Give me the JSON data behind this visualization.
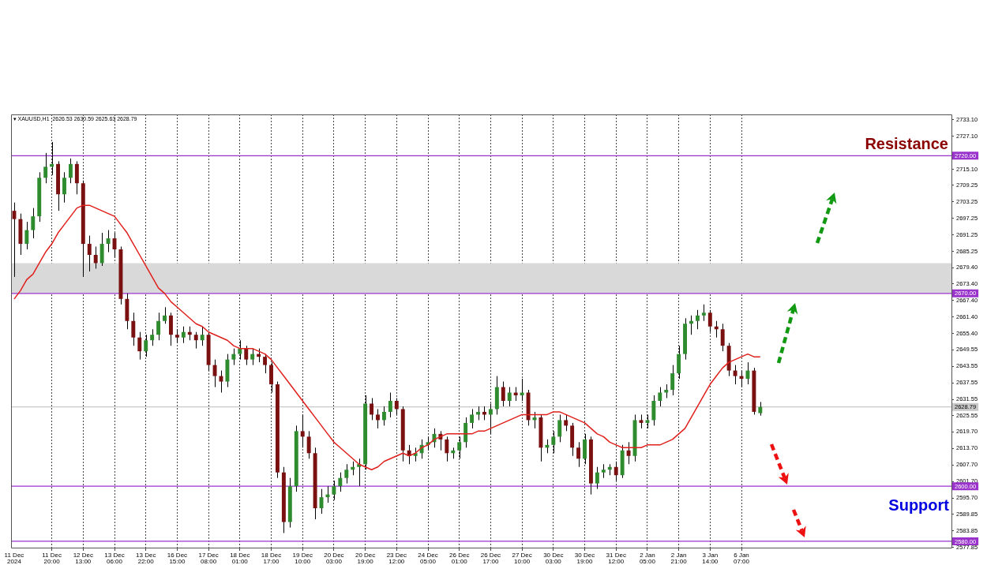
{
  "chart_data": {
    "type": "candlestick",
    "categories": [
      "11 Dec 2024",
      null,
      null,
      null,
      null,
      null,
      "11 Dec 20:00",
      null,
      null,
      null,
      null,
      "12 Dec 13:00",
      null,
      null,
      null,
      null,
      "13 Dec 06:00",
      null,
      null,
      null,
      null,
      "13 Dec 22:00",
      null,
      null,
      null,
      null,
      "16 Dec 15:00",
      null,
      null,
      null,
      null,
      "17 Dec 08:00",
      null,
      null,
      null,
      null,
      "18 Dec 01:00",
      null,
      null,
      null,
      null,
      "18 Dec 17:00",
      null,
      null,
      null,
      null,
      "19 Dec 10:00",
      null,
      null,
      null,
      null,
      "20 Dec 03:00",
      null,
      null,
      null,
      null,
      "20 Dec 19:00",
      null,
      null,
      null,
      null,
      "23 Dec 12:00",
      null,
      null,
      null,
      null,
      "24 Dec 05:00",
      null,
      null,
      null,
      null,
      "26 Dec 01:00",
      null,
      null,
      null,
      null,
      "26 Dec 17:00",
      null,
      null,
      null,
      null,
      "27 Dec 10:00",
      null,
      null,
      null,
      null,
      "30 Dec 03:00",
      null,
      null,
      null,
      null,
      "30 Dec 19:00",
      null,
      null,
      null,
      null,
      "31 Dec 12:00",
      null,
      null,
      null,
      null,
      "2 Jan 05:00",
      null,
      null,
      null,
      null,
      "2 Jan 21:00",
      null,
      null,
      null,
      null,
      "3 Jan 14:00",
      null,
      null,
      null,
      null,
      "6 Jan 07:00",
      null,
      null,
      null,
      null,
      null,
      null,
      null,
      null,
      null,
      null,
      null,
      null,
      null,
      null,
      null,
      null,
      null,
      null,
      null,
      null,
      null,
      null,
      null,
      null,
      null,
      null,
      null,
      null,
      null,
      null,
      null,
      null,
      null
    ],
    "colors": [
      "#7a1010",
      "#7a1010",
      "#2e8b2e",
      "#2e8b2e",
      "#2e8b2e",
      "#2e8b2e",
      "#2e8b2e",
      "#7a1010",
      "#2e8b2e",
      "#2e8b2e",
      "#7a1010",
      "#7a1010",
      "#7a1010",
      "#7a1010",
      "#2e8b2e",
      "#2e8b2e",
      "#7a1010",
      "#7a1010",
      "#7a1010",
      "#7a1010",
      "#7a1010",
      "#2e8b2e",
      "#2e8b2e",
      "#2e8b2e",
      "#2e8b2e",
      "#7a1010",
      "#7a1010",
      "#2e8b2e",
      "#7a1010",
      "#7a1010",
      "#2e8b2e",
      "#7a1010",
      "#7a1010",
      "#7a1010",
      "#2e8b2e",
      "#2e8b2e",
      "#2e8b2e",
      "#7a1010",
      "#2e8b2e",
      "#7a1010",
      "#7a1010",
      "#7a1010",
      "#7a1010",
      "#7a1010",
      "#2e8b2e",
      "#2e8b2e",
      "#7a1010",
      "#7a1010",
      "#7a1010",
      "#2e8b2e",
      "#2e8b2e",
      "#2e8b2e",
      "#2e8b2e",
      "#2e8b2e",
      "#2e8b2e",
      "#2e8b2e",
      "#2e8b2e",
      "#7a1010",
      "#7a1010",
      "#2e8b2e",
      "#2e8b2e",
      "#7a1010",
      "#7a1010",
      "#7a1010",
      "#2e8b2e",
      "#2e8b2e",
      "#2e8b2e",
      "#2e8b2e",
      "#7a1010",
      "#7a1010",
      "#2e8b2e",
      "#2e8b2e",
      "#2e8b2e",
      "#2e8b2e",
      "#2e8b2e",
      "#7a1010",
      "#2e8b2e",
      "#2e8b2e",
      "#7a1010",
      "#2e8b2e",
      "#7a1010",
      "#2e8b2e",
      "#7a1010",
      "#2e8b2e",
      "#7a1010",
      "#2e8b2e",
      "#2e8b2e",
      "#2e8b2e",
      "#7a1010",
      "#7a1010",
      "#7a1010",
      "#2e8b2e",
      "#7a1010",
      "#2e8b2e",
      "#2e8b2e",
      "#2e8b2e",
      "#7a1010",
      "#2e8b2e",
      "#7a1010",
      "#2e8b2e",
      "#7a1010",
      "#2e8b2e",
      "#2e8b2e",
      "#2e8b2e",
      "#2e8b2e",
      "#2e8b2e",
      "#2e8b2e",
      "#2e8b2e",
      "#2e8b2e",
      "#2e8b2e",
      "#2e8b2e",
      "#7a1010",
      "#7a1010",
      "#7a1010",
      "#7a1010",
      "#7a1010",
      "#7a1010",
      "#2e8b2e",
      "#7a1010",
      "#2e8b2e",
      null,
      null,
      null,
      null,
      null,
      null,
      null,
      null,
      null,
      null,
      null,
      null,
      null,
      null,
      null,
      null,
      null,
      null,
      null,
      null,
      null,
      null,
      null,
      null,
      null,
      null,
      null,
      null,
      null,
      null
    ],
    "ohlc": [
      [
        2700,
        2703,
        2676,
        2697
      ],
      [
        2697,
        2699,
        2684,
        2688
      ],
      [
        2688,
        2696,
        2686,
        2693
      ],
      [
        2693,
        2701,
        2690,
        2698
      ],
      [
        2698,
        2714,
        2696,
        2712
      ],
      [
        2712,
        2721,
        2710,
        2716
      ],
      [
        2716,
        2725,
        2713,
        2717
      ],
      [
        2717,
        2718,
        2700,
        2706
      ],
      [
        2706,
        2714,
        2703,
        2712
      ],
      [
        2712,
        2719,
        2710,
        2717
      ],
      [
        2717,
        2718,
        2706,
        2710
      ],
      [
        2710,
        2711,
        2676,
        2688
      ],
      [
        2688,
        2691,
        2678,
        2684
      ],
      [
        2684,
        2687,
        2679,
        2681
      ],
      [
        2681,
        2692,
        2680,
        2688
      ],
      [
        2688,
        2693,
        2685,
        2690
      ],
      [
        2690,
        2692,
        2683,
        2686
      ],
      [
        2686,
        2687,
        2666,
        2668
      ],
      [
        2668,
        2670,
        2657,
        2660
      ],
      [
        2660,
        2663,
        2651,
        2654
      ],
      [
        2654,
        2656,
        2646,
        2649
      ],
      [
        2649,
        2655,
        2647,
        2653
      ],
      [
        2653,
        2657,
        2651,
        2655
      ],
      [
        2655,
        2663,
        2653,
        2660
      ],
      [
        2660,
        2665,
        2659,
        2662
      ],
      [
        2662,
        2663,
        2651,
        2655
      ],
      [
        2655,
        2657,
        2652,
        2654
      ],
      [
        2654,
        2658,
        2652,
        2656
      ],
      [
        2656,
        2658,
        2653,
        2655
      ],
      [
        2655,
        2656,
        2650,
        2653
      ],
      [
        2653,
        2658,
        2651,
        2655
      ],
      [
        2655,
        2656,
        2642,
        2644
      ],
      [
        2644,
        2646,
        2636,
        2640
      ],
      [
        2640,
        2642,
        2634,
        2638
      ],
      [
        2638,
        2648,
        2636,
        2646
      ],
      [
        2646,
        2650,
        2644,
        2648
      ],
      [
        2648,
        2653,
        2646,
        2650
      ],
      [
        2650,
        2651,
        2644,
        2646
      ],
      [
        2646,
        2650,
        2644,
        2648
      ],
      [
        2648,
        2650,
        2645,
        2647
      ],
      [
        2647,
        2648,
        2641,
        2644
      ],
      [
        2644,
        2645,
        2634,
        2637
      ],
      [
        2637,
        2638,
        2603,
        2605
      ],
      [
        2605,
        2607,
        2583,
        2587
      ],
      [
        2587,
        2603,
        2585,
        2600
      ],
      [
        2600,
        2622,
        2598,
        2620
      ],
      [
        2620,
        2626,
        2614,
        2618
      ],
      [
        2618,
        2620,
        2610,
        2612
      ],
      [
        2612,
        2614,
        2588,
        2592
      ],
      [
        2592,
        2599,
        2590,
        2596
      ],
      [
        2596,
        2600,
        2594,
        2597
      ],
      [
        2597,
        2602,
        2595,
        2600
      ],
      [
        2600,
        2605,
        2598,
        2603
      ],
      [
        2603,
        2608,
        2601,
        2606
      ],
      [
        2606,
        2609,
        2604,
        2607
      ],
      [
        2607,
        2610,
        2600,
        2608
      ],
      [
        2608,
        2633,
        2606,
        2630
      ],
      [
        2630,
        2632,
        2624,
        2626
      ],
      [
        2626,
        2628,
        2621,
        2624
      ],
      [
        2624,
        2629,
        2622,
        2627
      ],
      [
        2627,
        2634,
        2625,
        2631
      ],
      [
        2631,
        2632,
        2626,
        2628
      ],
      [
        2628,
        2629,
        2609,
        2613
      ],
      [
        2613,
        2615,
        2608,
        2611
      ],
      [
        2611,
        2614,
        2609,
        2612
      ],
      [
        2612,
        2617,
        2610,
        2615
      ],
      [
        2615,
        2618,
        2613,
        2616
      ],
      [
        2616,
        2621,
        2614,
        2619
      ],
      [
        2619,
        2620,
        2613,
        2617
      ],
      [
        2617,
        2618,
        2609,
        2612
      ],
      [
        2612,
        2614,
        2610,
        2613
      ],
      [
        2613,
        2618,
        2610,
        2616
      ],
      [
        2616,
        2625,
        2614,
        2623
      ],
      [
        2623,
        2628,
        2621,
        2626
      ],
      [
        2626,
        2629,
        2624,
        2627
      ],
      [
        2627,
        2629,
        2624,
        2626
      ],
      [
        2626,
        2630,
        2619,
        2628
      ],
      [
        2628,
        2640,
        2626,
        2636
      ],
      [
        2636,
        2638,
        2629,
        2631
      ],
      [
        2631,
        2636,
        2629,
        2634
      ],
      [
        2634,
        2636,
        2631,
        2633
      ],
      [
        2633,
        2639,
        2631,
        2634
      ],
      [
        2634,
        2635,
        2622,
        2624
      ],
      [
        2624,
        2627,
        2621,
        2625
      ],
      [
        2625,
        2626,
        2609,
        2614
      ],
      [
        2614,
        2617,
        2612,
        2615
      ],
      [
        2615,
        2620,
        2612,
        2618
      ],
      [
        2618,
        2626,
        2616,
        2624
      ],
      [
        2624,
        2626,
        2620,
        2622
      ],
      [
        2622,
        2623,
        2611,
        2614
      ],
      [
        2614,
        2616,
        2607,
        2610
      ],
      [
        2610,
        2619,
        2608,
        2617
      ],
      [
        2617,
        2618,
        2597,
        2601
      ],
      [
        2601,
        2607,
        2599,
        2605
      ],
      [
        2605,
        2608,
        2603,
        2606
      ],
      [
        2606,
        2608,
        2604,
        2607
      ],
      [
        2607,
        2609,
        2602,
        2604
      ],
      [
        2604,
        2615,
        2603,
        2613
      ],
      [
        2613,
        2616,
        2608,
        2611
      ],
      [
        2611,
        2626,
        2609,
        2624
      ],
      [
        2624,
        2626,
        2621,
        2623
      ],
      [
        2623,
        2626,
        2621,
        2624
      ],
      [
        2624,
        2633,
        2622,
        2631
      ],
      [
        2631,
        2636,
        2629,
        2634
      ],
      [
        2634,
        2637,
        2632,
        2635
      ],
      [
        2635,
        2644,
        2633,
        2641
      ],
      [
        2641,
        2651,
        2639,
        2648
      ],
      [
        2648,
        2661,
        2646,
        2659
      ],
      [
        2659,
        2662,
        2655,
        2660
      ],
      [
        2660,
        2664,
        2657,
        2662
      ],
      [
        2662,
        2666,
        2660,
        2663
      ],
      [
        2663,
        2664,
        2656,
        2658
      ],
      [
        2658,
        2660,
        2654,
        2657
      ],
      [
        2657,
        2659,
        2649,
        2651
      ],
      [
        2651,
        2652,
        2640,
        2642
      ],
      [
        2642,
        2644,
        2637,
        2640
      ],
      [
        2640,
        2642,
        2636,
        2639
      ],
      [
        2639,
        2645,
        2637,
        2642
      ],
      [
        2642,
        2643,
        2626,
        2627
      ],
      [
        2626.53,
        2630.59,
        2625.63,
        2628.79
      ],
      null,
      null,
      null,
      null,
      null,
      null,
      null,
      null,
      null,
      null,
      null,
      null,
      null,
      null,
      null,
      null,
      null,
      null,
      null,
      null,
      null,
      null,
      null,
      null,
      null,
      null,
      null,
      null,
      null,
      null
    ],
    "series": [
      {
        "type": "line",
        "color": "#e0201c",
        "values": [
          2668,
          2671,
          2675,
          2677,
          2681,
          2685,
          2688,
          2692,
          2695,
          2698,
          2701,
          2702,
          2702,
          2701,
          2700,
          2699,
          2698,
          2695,
          2692,
          2688,
          2684,
          2680,
          2676,
          2672,
          2670,
          2667,
          2665,
          2663,
          2661,
          2659,
          2658,
          2656,
          2655,
          2654,
          2653,
          2651,
          2650,
          2650,
          2650,
          2649,
          2648,
          2646,
          2643,
          2640,
          2637,
          2634,
          2631,
          2628,
          2625,
          2622,
          2619,
          2616,
          2614,
          2612,
          2610,
          2608,
          2607,
          2606,
          2607,
          2609,
          2610,
          2611,
          2612,
          2611,
          2612,
          2614,
          2615,
          2617,
          2618,
          2619,
          2619,
          2619,
          2619,
          2619,
          2620,
          2620,
          2621,
          2622,
          2623,
          2624,
          2625,
          2626,
          2626,
          2626,
          2626,
          2626,
          2627,
          2627,
          2626,
          2625,
          2624,
          2623,
          2621,
          2619,
          2618,
          2616,
          2615,
          2614,
          2614,
          2614,
          2614,
          2615,
          2615,
          2615,
          2616,
          2617,
          2619,
          2621,
          2625,
          2629,
          2633,
          2637,
          2640,
          2643,
          2645,
          2646,
          2647,
          2648,
          2647,
          2647,
          null,
          null,
          null,
          null,
          null,
          null,
          null,
          null,
          null,
          null,
          null,
          null,
          null,
          null,
          null,
          null,
          null,
          null,
          null,
          null,
          null,
          null,
          null,
          null,
          null,
          null,
          null,
          null,
          null,
          null
        ]
      }
    ],
    "ylim": [
      2577.7,
      2735
    ],
    "yticks": [
      {
        "value": 2733.1,
        "label": "2733.10"
      },
      {
        "value": 2727.1,
        "label": "2727.10"
      },
      {
        "value": 2715.1,
        "label": "2715.10"
      },
      {
        "value": 2709.25,
        "label": "2709.25"
      },
      {
        "value": 2703.25,
        "label": "2703.25"
      },
      {
        "value": 2697.25,
        "label": "2697.25"
      },
      {
        "value": 2691.25,
        "label": "2691.25"
      },
      {
        "value": 2685.25,
        "label": "2685.25"
      },
      {
        "value": 2679.4,
        "label": "2679.40"
      },
      {
        "value": 2673.4,
        "label": "2673.40"
      },
      {
        "value": 2667.4,
        "label": "2667.40"
      },
      {
        "value": 2661.4,
        "label": "2661.40"
      },
      {
        "value": 2655.4,
        "label": "2655.40"
      },
      {
        "value": 2649.55,
        "label": "2649.55"
      },
      {
        "value": 2643.55,
        "label": "2643.55"
      },
      {
        "value": 2637.55,
        "label": "2637.55"
      },
      {
        "value": 2631.55,
        "label": "2631.55"
      },
      {
        "value": 2625.55,
        "label": "2625.55"
      },
      {
        "value": 2619.7,
        "label": "2619.70"
      },
      {
        "value": 2613.7,
        "label": "2613.70"
      },
      {
        "value": 2607.7,
        "label": "2607.70"
      },
      {
        "value": 2601.7,
        "label": "2601.70"
      },
      {
        "value": 2595.7,
        "label": "2595.70"
      },
      {
        "value": 2589.85,
        "label": "2589.85"
      },
      {
        "value": 2583.85,
        "label": "2583.85"
      },
      {
        "value": 2577.85,
        "label": "2577.85"
      }
    ],
    "grid": "x",
    "ref_lines": [
      {
        "axis": "y",
        "value": 2720,
        "label": "2720.00",
        "color": "#9933cc"
      },
      {
        "axis": "y",
        "value": 2670,
        "label": "2670.00",
        "color": "#9933cc"
      },
      {
        "axis": "y",
        "value": 2600,
        "label": "2600.00",
        "color": "#9933cc"
      },
      {
        "axis": "y",
        "value": 2580,
        "label": "2580.00",
        "color": "#9933cc"
      },
      {
        "axis": "y",
        "value": 2628.79,
        "label": "2628.79",
        "color": "#c8c8c8"
      }
    ],
    "bands": [
      {
        "axis": "y",
        "from": 2670,
        "to": 2681,
        "color": "#d9d9d9"
      }
    ],
    "annotations": [
      "▾ XAUUSD,H1  2626.53 2630.59 2625.63 2628.79",
      "Resistance",
      "Support"
    ]
  }
}
